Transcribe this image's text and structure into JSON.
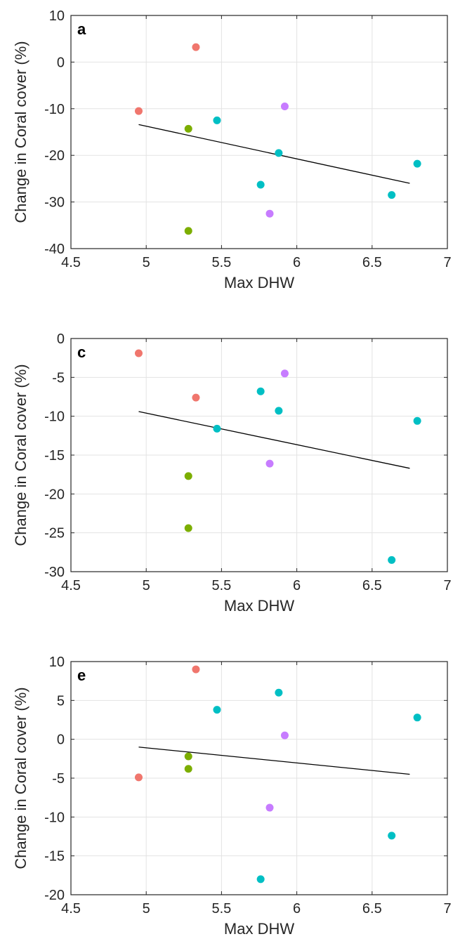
{
  "chart_data": [
    {
      "type": "scatter",
      "panel_label": "a",
      "xlabel": "Max DHW",
      "ylabel": "Change in Coral cover (%)",
      "xlim": [
        4.5,
        7
      ],
      "ylim": [
        -40,
        10
      ],
      "x_ticks": [
        4.5,
        5,
        5.5,
        6,
        6.5,
        7
      ],
      "x_tick_labels": [
        "4.5",
        "5",
        "5.5",
        "6",
        "6.5",
        "7"
      ],
      "y_ticks": [
        -40,
        -30,
        -20,
        -10,
        0,
        10
      ],
      "y_tick_labels": [
        "-40",
        "-30",
        "-20",
        "-10",
        "0",
        "10"
      ],
      "grid": true,
      "colors": {
        "red": "#f0766d",
        "green": "#7cae00",
        "cyan": "#00bfc4",
        "purple": "#c77cff"
      },
      "points": [
        {
          "x": 4.95,
          "y": -10.5,
          "color": "red"
        },
        {
          "x": 5.33,
          "y": 3.2,
          "color": "red"
        },
        {
          "x": 5.28,
          "y": -14.3,
          "color": "green"
        },
        {
          "x": 5.28,
          "y": -36.2,
          "color": "green"
        },
        {
          "x": 5.47,
          "y": -12.5,
          "color": "cyan"
        },
        {
          "x": 5.76,
          "y": -26.3,
          "color": "cyan"
        },
        {
          "x": 5.88,
          "y": -19.5,
          "color": "cyan"
        },
        {
          "x": 6.63,
          "y": -28.5,
          "color": "cyan"
        },
        {
          "x": 6.8,
          "y": -21.8,
          "color": "cyan"
        },
        {
          "x": 5.82,
          "y": -32.5,
          "color": "purple"
        },
        {
          "x": 5.92,
          "y": -9.5,
          "color": "purple"
        }
      ],
      "fit_line": {
        "x": [
          4.95,
          6.75
        ],
        "y": [
          -13.4,
          -26.0
        ]
      }
    },
    {
      "type": "scatter",
      "panel_label": "c",
      "xlabel": "Max DHW",
      "ylabel": "Change in Coral cover (%)",
      "xlim": [
        4.5,
        7
      ],
      "ylim": [
        -30,
        0
      ],
      "x_ticks": [
        4.5,
        5,
        5.5,
        6,
        6.5,
        7
      ],
      "x_tick_labels": [
        "4.5",
        "5",
        "5.5",
        "6",
        "6.5",
        "7"
      ],
      "y_ticks": [
        -30,
        -25,
        -20,
        -15,
        -10,
        -5,
        0
      ],
      "y_tick_labels": [
        "-30",
        "-25",
        "-20",
        "-15",
        "-10",
        "-5",
        "0"
      ],
      "grid": true,
      "colors": {
        "red": "#f0766d",
        "green": "#7cae00",
        "cyan": "#00bfc4",
        "purple": "#c77cff"
      },
      "points": [
        {
          "x": 4.95,
          "y": -1.9,
          "color": "red"
        },
        {
          "x": 5.33,
          "y": -7.6,
          "color": "red"
        },
        {
          "x": 5.28,
          "y": -17.7,
          "color": "green"
        },
        {
          "x": 5.28,
          "y": -24.4,
          "color": "green"
        },
        {
          "x": 5.47,
          "y": -11.6,
          "color": "cyan"
        },
        {
          "x": 5.76,
          "y": -6.8,
          "color": "cyan"
        },
        {
          "x": 5.88,
          "y": -9.3,
          "color": "cyan"
        },
        {
          "x": 6.63,
          "y": -28.5,
          "color": "cyan"
        },
        {
          "x": 6.8,
          "y": -10.6,
          "color": "cyan"
        },
        {
          "x": 5.82,
          "y": -16.1,
          "color": "purple"
        },
        {
          "x": 5.92,
          "y": -4.5,
          "color": "purple"
        }
      ],
      "fit_line": {
        "x": [
          4.95,
          6.75
        ],
        "y": [
          -9.4,
          -16.7
        ]
      }
    },
    {
      "type": "scatter",
      "panel_label": "e",
      "xlabel": "Max DHW",
      "ylabel": "Change in Coral cover (%)",
      "xlim": [
        4.5,
        7
      ],
      "ylim": [
        -20,
        10
      ],
      "x_ticks": [
        4.5,
        5,
        5.5,
        6,
        6.5,
        7
      ],
      "x_tick_labels": [
        "4.5",
        "5",
        "5.5",
        "6",
        "6.5",
        "7"
      ],
      "y_ticks": [
        -20,
        -15,
        -10,
        -5,
        0,
        5,
        10
      ],
      "y_tick_labels": [
        "-20",
        "-15",
        "-10",
        "-5",
        "0",
        "5",
        "10"
      ],
      "grid": true,
      "colors": {
        "red": "#f0766d",
        "green": "#7cae00",
        "cyan": "#00bfc4",
        "purple": "#c77cff"
      },
      "points": [
        {
          "x": 4.95,
          "y": -4.9,
          "color": "red"
        },
        {
          "x": 5.33,
          "y": 9.0,
          "color": "red"
        },
        {
          "x": 5.28,
          "y": -2.2,
          "color": "green"
        },
        {
          "x": 5.28,
          "y": -3.8,
          "color": "green"
        },
        {
          "x": 5.47,
          "y": 3.8,
          "color": "cyan"
        },
        {
          "x": 5.76,
          "y": -18.0,
          "color": "cyan"
        },
        {
          "x": 5.88,
          "y": 6.0,
          "color": "cyan"
        },
        {
          "x": 6.63,
          "y": -12.4,
          "color": "cyan"
        },
        {
          "x": 6.8,
          "y": 2.8,
          "color": "cyan"
        },
        {
          "x": 5.82,
          "y": -8.8,
          "color": "purple"
        },
        {
          "x": 5.92,
          "y": 0.5,
          "color": "purple"
        }
      ],
      "fit_line": {
        "x": [
          4.95,
          6.75
        ],
        "y": [
          -1.0,
          -4.5
        ]
      }
    }
  ]
}
